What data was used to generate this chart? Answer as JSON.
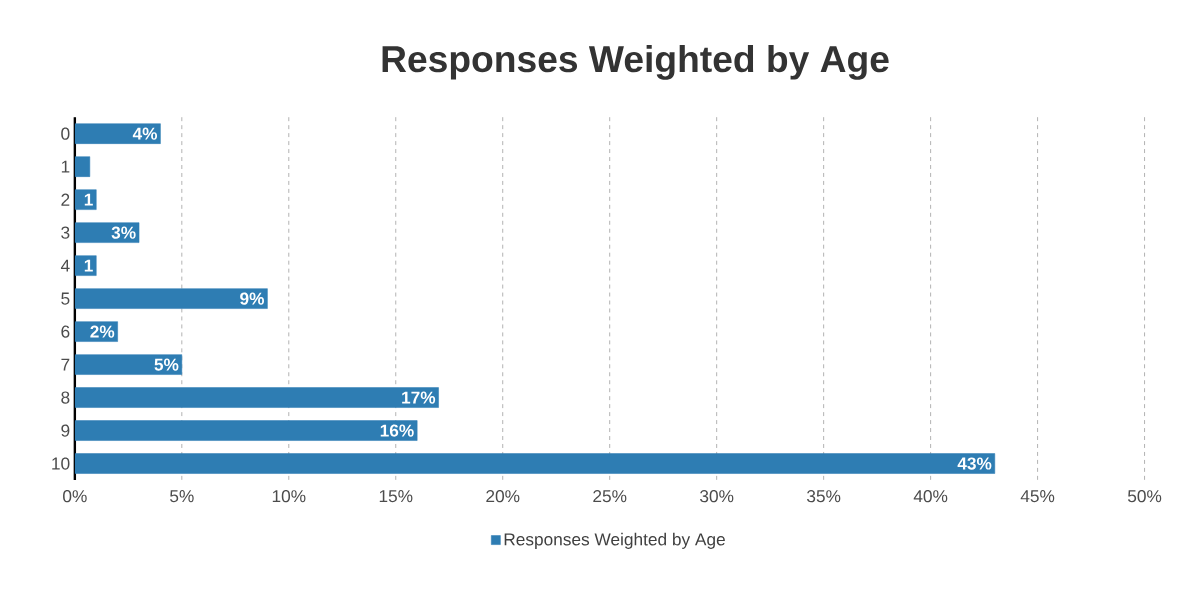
{
  "chart_data": {
    "type": "bar",
    "orientation": "horizontal",
    "title": "Responses Weighted by Age",
    "categories": [
      "0",
      "1",
      "2",
      "3",
      "4",
      "5",
      "6",
      "7",
      "8",
      "9",
      "10"
    ],
    "series": [
      {
        "name": "Responses Weighted by Age",
        "color": "#2e7db3",
        "values": [
          4,
          0.7,
          1,
          3,
          1,
          9,
          2,
          5,
          17,
          16,
          43
        ],
        "value_labels": [
          "4%",
          null,
          "1",
          "3%",
          "1",
          "9%",
          "2%",
          "5%",
          "17%",
          "16%",
          "43%"
        ]
      }
    ],
    "xlim": [
      0,
      50
    ],
    "xticks": [
      {
        "value": 0,
        "label": "0%"
      },
      {
        "value": 5,
        "label": "5%"
      },
      {
        "value": 10,
        "label": "10%"
      },
      {
        "value": 15,
        "label": "15%"
      },
      {
        "value": 20,
        "label": "20%"
      },
      {
        "value": 25,
        "label": "25%"
      },
      {
        "value": 30,
        "label": "30%"
      },
      {
        "value": 35,
        "label": "35%"
      },
      {
        "value": 40,
        "label": "40%"
      },
      {
        "value": 45,
        "label": "45%"
      },
      {
        "value": 50,
        "label": "50%"
      }
    ],
    "grid": "x",
    "legend": "bottom"
  }
}
